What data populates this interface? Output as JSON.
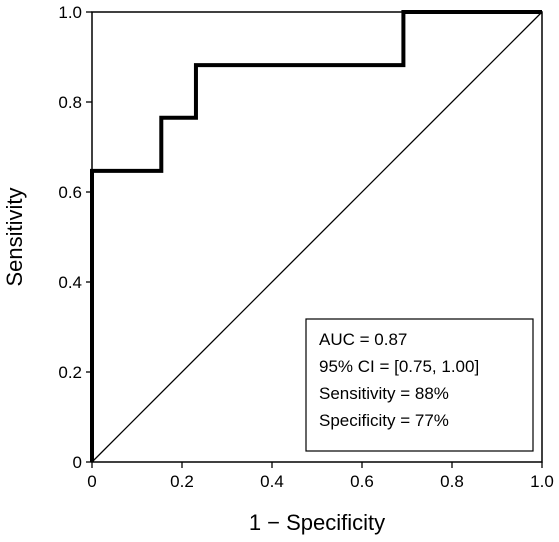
{
  "chart_data": {
    "type": "line",
    "xlabel": "1 − Specificity",
    "ylabel": "Sensitivity",
    "xlim": [
      0,
      1
    ],
    "ylim": [
      0,
      1
    ],
    "xticks": [
      "0",
      "0.2",
      "0.4",
      "0.6",
      "0.8",
      "1.0"
    ],
    "yticks": [
      "0",
      "0.2",
      "0.4",
      "0.6",
      "0.8",
      "1.0"
    ],
    "grid": false,
    "series": [
      {
        "x": [
          0,
          0,
          0.154,
          0.154,
          0.231,
          0.231,
          0.692,
          0.692,
          1.0
        ],
        "y": [
          0,
          0.647,
          0.647,
          0.765,
          0.765,
          0.882,
          0.882,
          1.0,
          1.0
        ]
      }
    ],
    "reference_line": {
      "x": [
        0,
        1
      ],
      "y": [
        0,
        1
      ]
    },
    "annotation": {
      "lines": [
        "AUC = 0.87",
        "95% CI = [0.75, 1.00]",
        "Sensitivity = 88%",
        "Specificity = 77%"
      ],
      "placement": "bottom-right"
    }
  }
}
